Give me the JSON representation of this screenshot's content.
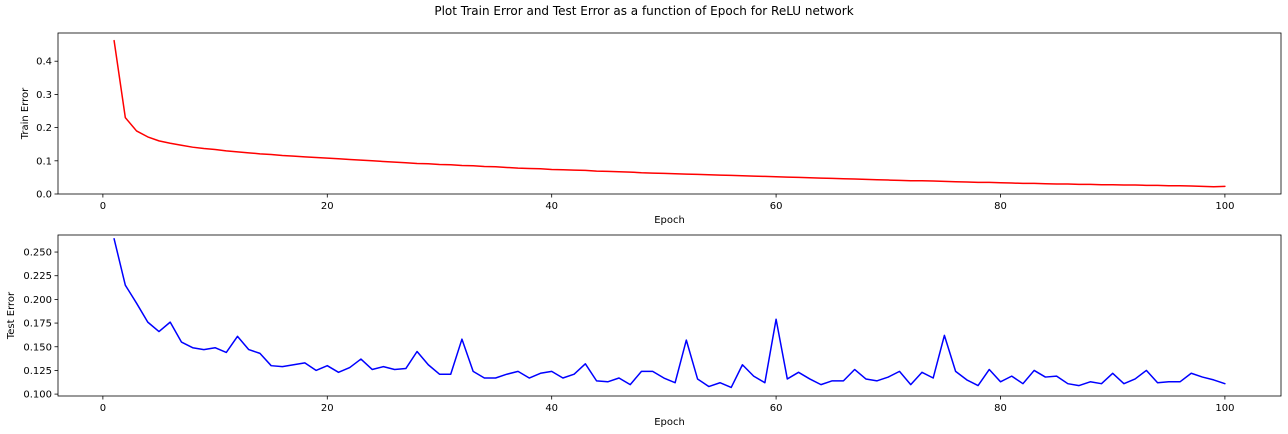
{
  "figure": {
    "title": "Plot Train Error and Test Error as a function of Epoch for ReLU network"
  },
  "chart_data": [
    {
      "type": "line",
      "title": "",
      "xlabel": "Epoch",
      "ylabel": "Train Error",
      "xlim": [
        -4.0,
        105.0
      ],
      "ylim": [
        0.0,
        0.485
      ],
      "xticks": [
        0,
        20,
        40,
        60,
        80,
        100
      ],
      "yticks": [
        0.0,
        0.1,
        0.2,
        0.3,
        0.4
      ],
      "ytick_decimals": 1,
      "grid": false,
      "series": [
        {
          "color": "#ff0000",
          "x": [
            1,
            2,
            3,
            4,
            5,
            6,
            7,
            8,
            9,
            10,
            11,
            12,
            13,
            14,
            15,
            16,
            17,
            18,
            19,
            20,
            21,
            22,
            23,
            24,
            25,
            26,
            27,
            28,
            29,
            30,
            31,
            32,
            33,
            34,
            35,
            36,
            37,
            38,
            39,
            40,
            41,
            42,
            43,
            44,
            45,
            46,
            47,
            48,
            49,
            50,
            51,
            52,
            53,
            54,
            55,
            56,
            57,
            58,
            59,
            60,
            61,
            62,
            63,
            64,
            65,
            66,
            67,
            68,
            69,
            70,
            71,
            72,
            73,
            74,
            75,
            76,
            77,
            78,
            79,
            80,
            81,
            82,
            83,
            84,
            85,
            86,
            87,
            88,
            89,
            90,
            91,
            92,
            93,
            94,
            95,
            96,
            97,
            98,
            99,
            100
          ],
          "y": [
            0.462,
            0.23,
            0.19,
            0.172,
            0.16,
            0.153,
            0.147,
            0.141,
            0.137,
            0.134,
            0.13,
            0.127,
            0.124,
            0.121,
            0.119,
            0.116,
            0.114,
            0.112,
            0.11,
            0.108,
            0.106,
            0.104,
            0.102,
            0.1,
            0.098,
            0.096,
            0.094,
            0.092,
            0.091,
            0.089,
            0.088,
            0.086,
            0.085,
            0.083,
            0.082,
            0.08,
            0.078,
            0.077,
            0.076,
            0.074,
            0.073,
            0.072,
            0.071,
            0.069,
            0.068,
            0.067,
            0.066,
            0.064,
            0.063,
            0.062,
            0.061,
            0.06,
            0.059,
            0.058,
            0.057,
            0.056,
            0.055,
            0.054,
            0.053,
            0.052,
            0.051,
            0.05,
            0.049,
            0.048,
            0.047,
            0.046,
            0.045,
            0.044,
            0.043,
            0.042,
            0.041,
            0.04,
            0.04,
            0.039,
            0.038,
            0.037,
            0.036,
            0.035,
            0.035,
            0.034,
            0.033,
            0.032,
            0.032,
            0.031,
            0.03,
            0.03,
            0.029,
            0.029,
            0.028,
            0.028,
            0.027,
            0.027,
            0.026,
            0.026,
            0.025,
            0.025,
            0.024,
            0.023,
            0.022,
            0.023
          ]
        }
      ]
    },
    {
      "type": "line",
      "title": "",
      "xlabel": "Epoch",
      "ylabel": "Test Error",
      "xlim": [
        -4.0,
        105.0
      ],
      "ylim": [
        0.098,
        0.268
      ],
      "xticks": [
        0,
        20,
        40,
        60,
        80,
        100
      ],
      "yticks": [
        0.1,
        0.125,
        0.15,
        0.175,
        0.2,
        0.225,
        0.25
      ],
      "ytick_decimals": 3,
      "grid": false,
      "series": [
        {
          "color": "#0000ff",
          "x": [
            1,
            2,
            3,
            4,
            5,
            6,
            7,
            8,
            9,
            10,
            11,
            12,
            13,
            14,
            15,
            16,
            17,
            18,
            19,
            20,
            21,
            22,
            23,
            24,
            25,
            26,
            27,
            28,
            29,
            30,
            31,
            32,
            33,
            34,
            35,
            36,
            37,
            38,
            39,
            40,
            41,
            42,
            43,
            44,
            45,
            46,
            47,
            48,
            49,
            50,
            51,
            52,
            53,
            54,
            55,
            56,
            57,
            58,
            59,
            60,
            61,
            62,
            63,
            64,
            65,
            66,
            67,
            68,
            69,
            70,
            71,
            72,
            73,
            74,
            75,
            76,
            77,
            78,
            79,
            80,
            81,
            82,
            83,
            84,
            85,
            86,
            87,
            88,
            89,
            90,
            91,
            92,
            93,
            94,
            95,
            96,
            97,
            98,
            99,
            100
          ],
          "y": [
            0.264,
            0.215,
            0.196,
            0.176,
            0.166,
            0.176,
            0.155,
            0.149,
            0.147,
            0.149,
            0.144,
            0.161,
            0.147,
            0.143,
            0.13,
            0.129,
            0.131,
            0.133,
            0.125,
            0.13,
            0.123,
            0.128,
            0.137,
            0.126,
            0.129,
            0.126,
            0.127,
            0.145,
            0.131,
            0.121,
            0.121,
            0.158,
            0.124,
            0.117,
            0.117,
            0.121,
            0.124,
            0.117,
            0.122,
            0.124,
            0.117,
            0.121,
            0.132,
            0.114,
            0.113,
            0.117,
            0.11,
            0.124,
            0.124,
            0.117,
            0.112,
            0.157,
            0.116,
            0.108,
            0.112,
            0.107,
            0.131,
            0.119,
            0.112,
            0.179,
            0.116,
            0.123,
            0.116,
            0.11,
            0.114,
            0.114,
            0.126,
            0.116,
            0.114,
            0.118,
            0.124,
            0.11,
            0.123,
            0.117,
            0.162,
            0.124,
            0.115,
            0.109,
            0.126,
            0.113,
            0.119,
            0.111,
            0.125,
            0.118,
            0.119,
            0.111,
            0.109,
            0.113,
            0.111,
            0.122,
            0.111,
            0.116,
            0.125,
            0.112,
            0.113,
            0.113,
            0.122,
            0.118,
            0.115,
            0.111
          ]
        }
      ]
    }
  ]
}
